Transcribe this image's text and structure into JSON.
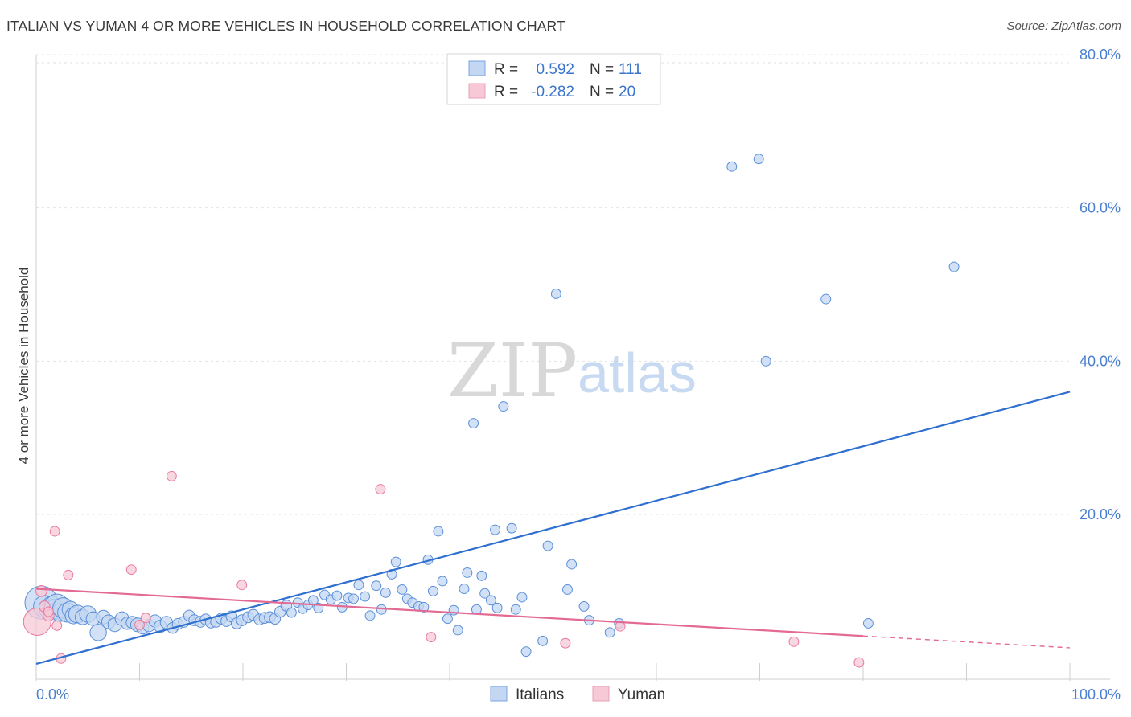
{
  "header": {
    "title": "ITALIAN VS YUMAN 4 OR MORE VEHICLES IN HOUSEHOLD CORRELATION CHART",
    "source": "Source: ZipAtlas.com"
  },
  "watermark": {
    "zip": "ZIP",
    "atlas": "atlas"
  },
  "legend_box": {
    "rows": [
      {
        "r_label": "R =",
        "r_value": "0.592",
        "n_label": "N =",
        "n_value": "111"
      },
      {
        "r_label": "R =",
        "r_value": "-0.282",
        "n_label": "N =",
        "n_value": "20"
      }
    ]
  },
  "bottom_legend": {
    "items": [
      "Italians",
      "Yuman"
    ]
  },
  "chart_data": {
    "type": "scatter",
    "title": "ITALIAN VS YUMAN 4 OR MORE VEHICLES IN HOUSEHOLD CORRELATION CHART",
    "xlabel": "",
    "ylabel": "4 or more Vehicles in Household",
    "xlim": [
      0,
      100
    ],
    "ylim": [
      -1.5,
      80
    ],
    "x_tick_labels": [
      {
        "value": 0,
        "label": "0.0%"
      },
      {
        "value": 100,
        "label": "100.0%"
      }
    ],
    "y_tick_labels": [
      {
        "value": 80,
        "label": "80.0%"
      },
      {
        "value": 60,
        "label": "60.0%"
      },
      {
        "value": 40,
        "label": "40.0%"
      },
      {
        "value": 20,
        "label": "20.0%"
      }
    ],
    "x_minor_ticks": [
      0,
      10,
      20,
      30,
      40,
      50,
      60,
      70,
      80,
      90,
      100
    ],
    "grid": true,
    "legend_position": "top-center",
    "colors": {
      "Italians": "#5b8fd8",
      "Yuman": "#e9799e",
      "italians_fill": "#c3d7f2",
      "yuman_fill": "#f7c9d7",
      "italians_line": "#2e6fd0",
      "yuman_line": "#e36a93"
    },
    "series": [
      {
        "name": "Italians",
        "r": 0.592,
        "n": 111,
        "trend": {
          "x": [
            0,
            100
          ],
          "y": [
            0.5,
            36
          ]
        },
        "points": [
          [
            0.5,
            8.5,
            2.4
          ],
          [
            0.8,
            8.0,
            1.6
          ],
          [
            1.2,
            7.7,
            1.4
          ],
          [
            1.5,
            8.2,
            1.3
          ],
          [
            1.8,
            7.5,
            1.6
          ],
          [
            2.0,
            8.0,
            1.8
          ],
          [
            2.3,
            7.2,
            1.3
          ],
          [
            2.6,
            7.8,
            1.5
          ],
          [
            3.0,
            7.2,
            1.4
          ],
          [
            3.3,
            7.6,
            1.2
          ],
          [
            3.6,
            6.8,
            1.2
          ],
          [
            4.0,
            7.0,
            1.3
          ],
          [
            4.5,
            6.6,
            1.1
          ],
          [
            5.0,
            7.0,
            1.2
          ],
          [
            5.5,
            6.4,
            1.0
          ],
          [
            6.0,
            4.6,
            1.2
          ],
          [
            6.5,
            6.6,
            1.0
          ],
          [
            7.0,
            6.0,
            1.0
          ],
          [
            7.6,
            5.6,
            1.0
          ],
          [
            8.3,
            6.4,
            1.0
          ],
          [
            8.8,
            5.8,
            0.9
          ],
          [
            9.3,
            5.9,
            0.9
          ],
          [
            9.8,
            5.6,
            1.0
          ],
          [
            10.3,
            5.2,
            0.9
          ],
          [
            10.9,
            5.5,
            0.9
          ],
          [
            11.5,
            6.1,
            0.9
          ],
          [
            12.0,
            5.4,
            0.9
          ],
          [
            12.6,
            5.9,
            0.9
          ],
          [
            13.2,
            5.2,
            0.8
          ],
          [
            13.7,
            5.7,
            0.8
          ],
          [
            14.3,
            6.0,
            0.8
          ],
          [
            14.8,
            6.8,
            0.8
          ],
          [
            15.3,
            6.2,
            0.8
          ],
          [
            15.9,
            6.0,
            0.8
          ],
          [
            16.4,
            6.3,
            0.8
          ],
          [
            16.9,
            5.9,
            0.8
          ],
          [
            17.4,
            6.0,
            0.8
          ],
          [
            17.9,
            6.4,
            0.8
          ],
          [
            18.4,
            6.1,
            0.8
          ],
          [
            18.9,
            6.7,
            0.8
          ],
          [
            19.4,
            5.8,
            0.8
          ],
          [
            19.9,
            6.2,
            0.8
          ],
          [
            20.5,
            6.6,
            0.8
          ],
          [
            21.0,
            6.9,
            0.8
          ],
          [
            21.6,
            6.3,
            0.8
          ],
          [
            22.1,
            6.5,
            0.8
          ],
          [
            22.6,
            6.6,
            0.8
          ],
          [
            23.1,
            6.4,
            0.8
          ],
          [
            23.6,
            7.3,
            0.8
          ],
          [
            24.2,
            8.1,
            0.8
          ],
          [
            24.7,
            7.2,
            0.7
          ],
          [
            25.3,
            8.5,
            0.7
          ],
          [
            25.8,
            7.7,
            0.7
          ],
          [
            26.3,
            8.2,
            0.7
          ],
          [
            26.8,
            8.8,
            0.7
          ],
          [
            27.3,
            7.8,
            0.7
          ],
          [
            27.9,
            9.5,
            0.7
          ],
          [
            28.5,
            8.9,
            0.7
          ],
          [
            29.1,
            9.4,
            0.7
          ],
          [
            29.6,
            7.9,
            0.7
          ],
          [
            30.2,
            9.1,
            0.7
          ],
          [
            30.7,
            9.0,
            0.7
          ],
          [
            31.2,
            10.8,
            0.7
          ],
          [
            31.8,
            9.3,
            0.7
          ],
          [
            32.3,
            6.8,
            0.7
          ],
          [
            32.9,
            10.7,
            0.7
          ],
          [
            33.4,
            7.6,
            0.7
          ],
          [
            33.8,
            9.8,
            0.7
          ],
          [
            34.4,
            12.2,
            0.7
          ],
          [
            34.8,
            13.8,
            0.7
          ],
          [
            35.4,
            10.2,
            0.7
          ],
          [
            35.9,
            9.0,
            0.7
          ],
          [
            36.4,
            8.5,
            0.7
          ],
          [
            37.0,
            8.0,
            0.7
          ],
          [
            37.5,
            7.9,
            0.7
          ],
          [
            37.9,
            14.1,
            0.7
          ],
          [
            38.4,
            10.0,
            0.7
          ],
          [
            38.9,
            17.8,
            0.7
          ],
          [
            39.3,
            11.3,
            0.7
          ],
          [
            39.8,
            6.4,
            0.7
          ],
          [
            40.4,
            7.5,
            0.7
          ],
          [
            40.8,
            4.9,
            0.7
          ],
          [
            41.4,
            10.3,
            0.7
          ],
          [
            41.7,
            12.4,
            0.7
          ],
          [
            42.3,
            31.9,
            0.7
          ],
          [
            42.6,
            7.6,
            0.7
          ],
          [
            43.1,
            12.0,
            0.7
          ],
          [
            43.4,
            9.7,
            0.7
          ],
          [
            44.0,
            8.8,
            0.7
          ],
          [
            44.6,
            7.8,
            0.7
          ],
          [
            44.4,
            18.0,
            0.7
          ],
          [
            45.2,
            34.1,
            0.7
          ],
          [
            46.0,
            18.2,
            0.7
          ],
          [
            46.4,
            7.6,
            0.7
          ],
          [
            47.0,
            9.2,
            0.7
          ],
          [
            47.4,
            2.1,
            0.7
          ],
          [
            49.0,
            3.5,
            0.7
          ],
          [
            49.5,
            15.9,
            0.7
          ],
          [
            50.3,
            48.8,
            0.7
          ],
          [
            51.4,
            10.2,
            0.7
          ],
          [
            51.8,
            13.5,
            0.7
          ],
          [
            53.0,
            8.0,
            0.7
          ],
          [
            53.5,
            6.2,
            0.7
          ],
          [
            55.5,
            4.6,
            0.7
          ],
          [
            56.4,
            5.8,
            0.7
          ],
          [
            67.3,
            65.4,
            0.7
          ],
          [
            69.9,
            66.4,
            0.7
          ],
          [
            70.6,
            40.0,
            0.7
          ],
          [
            76.4,
            48.1,
            0.7
          ],
          [
            80.5,
            5.8,
            0.7
          ],
          [
            88.8,
            52.3,
            0.7
          ]
        ]
      },
      {
        "name": "Yuman",
        "r": -0.282,
        "n": 20,
        "trend": {
          "x": [
            0,
            100
          ],
          "y": [
            10.3,
            2.6
          ],
          "solid_until": 80
        },
        "points": [
          [
            0.1,
            6.0,
            2.0
          ],
          [
            0.5,
            10.0,
            0.8
          ],
          [
            0.8,
            8.0,
            0.8
          ],
          [
            1.2,
            6.8,
            0.8
          ],
          [
            1.8,
            17.8,
            0.7
          ],
          [
            2.0,
            5.5,
            0.7
          ],
          [
            2.4,
            1.2,
            0.7
          ],
          [
            3.1,
            12.1,
            0.7
          ],
          [
            9.2,
            12.8,
            0.7
          ],
          [
            10.0,
            5.6,
            0.7
          ],
          [
            10.6,
            6.5,
            0.7
          ],
          [
            13.1,
            25.0,
            0.7
          ],
          [
            19.9,
            10.8,
            0.7
          ],
          [
            33.3,
            23.3,
            0.7
          ],
          [
            38.2,
            4.0,
            0.7
          ],
          [
            51.2,
            3.2,
            0.7
          ],
          [
            56.5,
            5.4,
            0.7
          ],
          [
            73.3,
            3.4,
            0.7
          ],
          [
            79.6,
            0.7,
            0.7
          ],
          [
            1.2,
            7.3,
            0.7
          ]
        ]
      }
    ]
  }
}
